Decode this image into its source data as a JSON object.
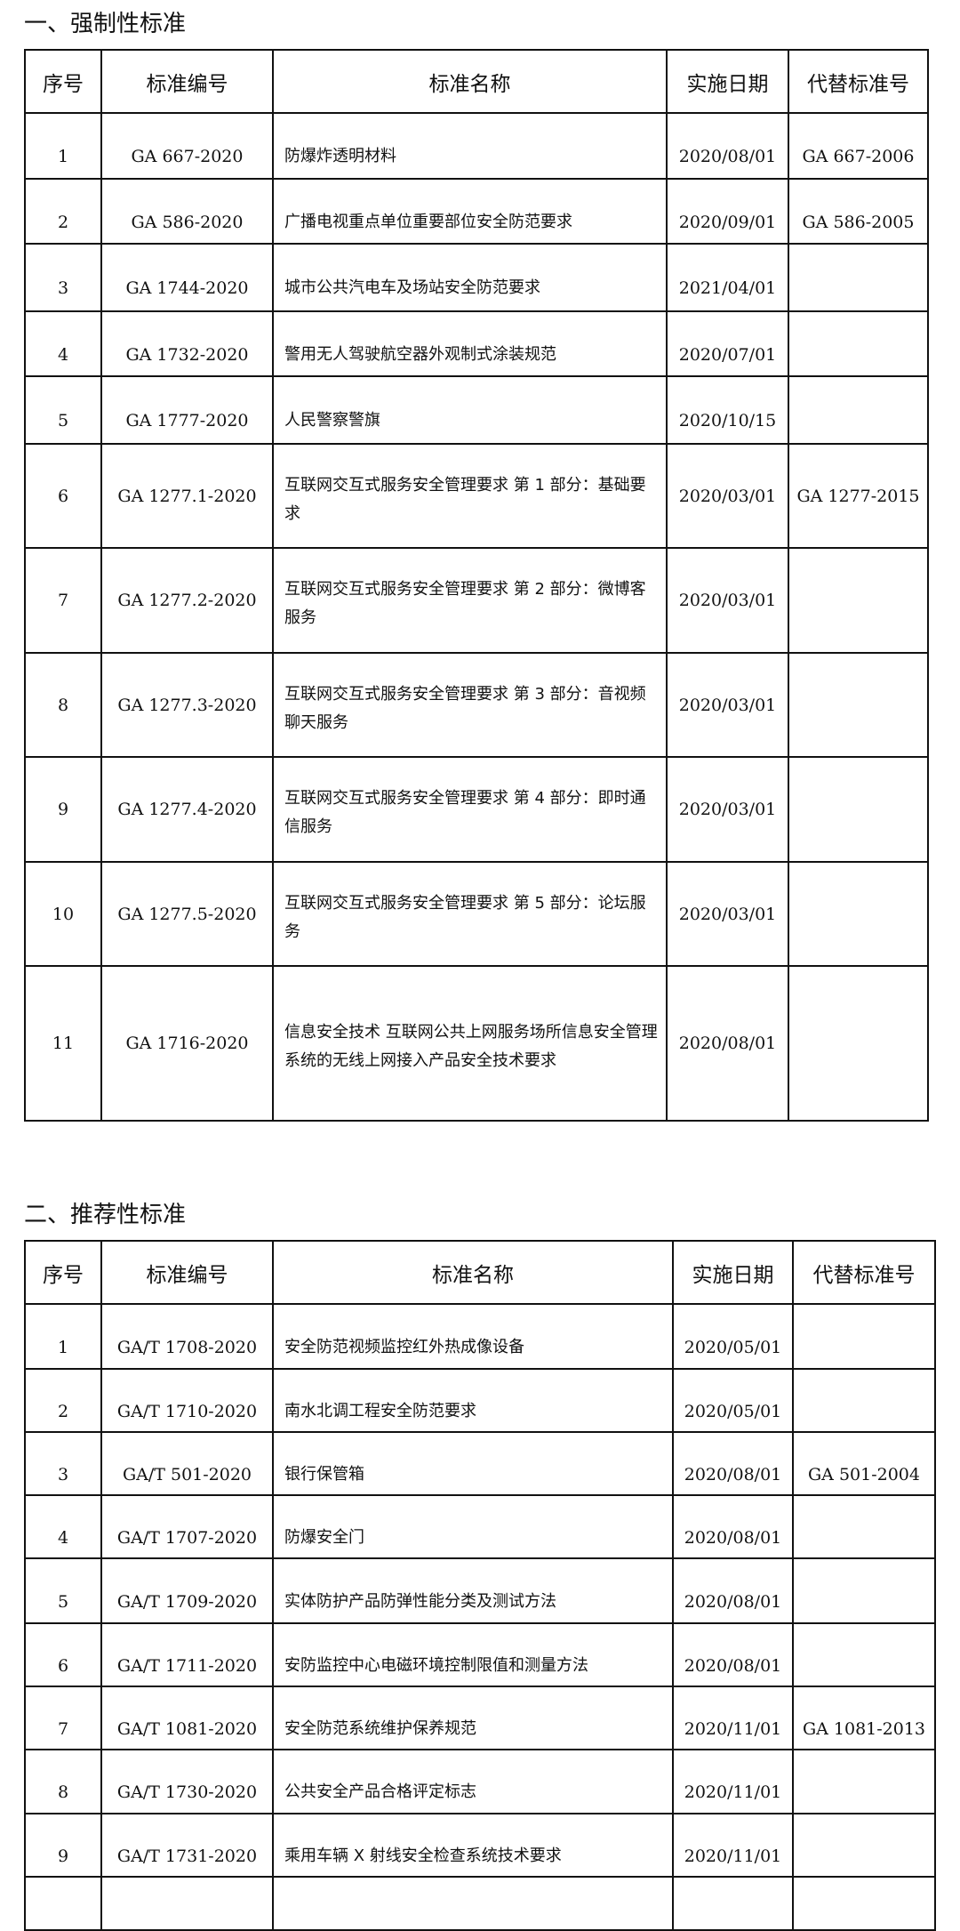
{
  "section1": {
    "title": "一、强制性标准",
    "headers": [
      "序号",
      "标准编号",
      "标准名称",
      "实施日期",
      "代替标准号"
    ],
    "rows": [
      [
        "1",
        "GA 667-2020",
        "防爆炸透明材料",
        "2020/08/01",
        "GA 667-2006"
      ],
      [
        "2",
        "GA 586-2020",
        "广播电视重点单位重要部位安全防范要求",
        "2020/09/01",
        "GA 586-2005"
      ],
      [
        "3",
        "GA 1744-2020",
        "城市公共汽电车及场站安全防范要求",
        "2021/04/01",
        ""
      ],
      [
        "4",
        "GA 1732-2020",
        "警用无人驾驶航空器外观制式涂装规范",
        "2020/07/01",
        ""
      ],
      [
        "5",
        "GA 1777-2020",
        "人民警察警旗",
        "2020/10/15",
        ""
      ],
      [
        "6",
        "GA 1277.1-2020",
        "互联网交互式服务安全管理要求 第 1 部分：基础要求",
        "2020/03/01",
        "GA 1277-2015"
      ],
      [
        "7",
        "GA 1277.2-2020",
        "互联网交互式服务安全管理要求 第 2 部分：微博客服务",
        "2020/03/01",
        ""
      ],
      [
        "8",
        "GA 1277.3-2020",
        "互联网交互式服务安全管理要求 第 3 部分：音视频聊天服务",
        "2020/03/01",
        ""
      ],
      [
        "9",
        "GA 1277.4-2020",
        "互联网交互式服务安全管理要求 第 4 部分：即时通信服务",
        "2020/03/01",
        ""
      ],
      [
        "10",
        "GA 1277.5-2020",
        "互联网交互式服务安全管理要求 第 5 部分：论坛服务",
        "2020/03/01",
        ""
      ],
      [
        "11",
        "GA 1716-2020",
        "信息安全技术 互联网公共上网服务场所信息安全管理系统的无线上网接入产品安全技术要求",
        "2020/08/01",
        ""
      ]
    ]
  },
  "section2": {
    "title": "二、推荐性标准",
    "headers": [
      "序号",
      "标准编号",
      "标准名称",
      "实施日期",
      "代替标准号"
    ],
    "rows": [
      [
        "1",
        "GA/T 1708-2020",
        "安全防范视频监控红外热成像设备",
        "2020/05/01",
        ""
      ],
      [
        "2",
        "GA/T 1710-2020",
        "南水北调工程安全防范要求",
        "2020/05/01",
        ""
      ],
      [
        "3",
        "GA/T 501-2020",
        "银行保管箱",
        "2020/08/01",
        "GA 501-2004"
      ],
      [
        "4",
        "GA/T 1707-2020",
        "防爆安全门",
        "2020/08/01",
        ""
      ],
      [
        "5",
        "GA/T 1709-2020",
        "实体防护产品防弹性能分类及测试方法",
        "2020/08/01",
        ""
      ],
      [
        "6",
        "GA/T 1711-2020",
        "安防监控中心电磁环境控制限值和测量方法",
        "2020/08/01",
        ""
      ],
      [
        "7",
        "GA/T 1081-2020",
        "安全防范系统维护保养规范",
        "2020/11/01",
        "GA 1081-2013"
      ],
      [
        "8",
        "GA/T 1730-2020",
        "公共安全产品合格评定标志",
        "2020/11/01",
        ""
      ],
      [
        "9",
        "GA/T 1731-2020",
        "乘用车辆 X 射线安全检查系统技术要求",
        "2020/11/01",
        ""
      ],
      [
        "",
        "",
        "",
        "",
        ""
      ]
    ]
  }
}
